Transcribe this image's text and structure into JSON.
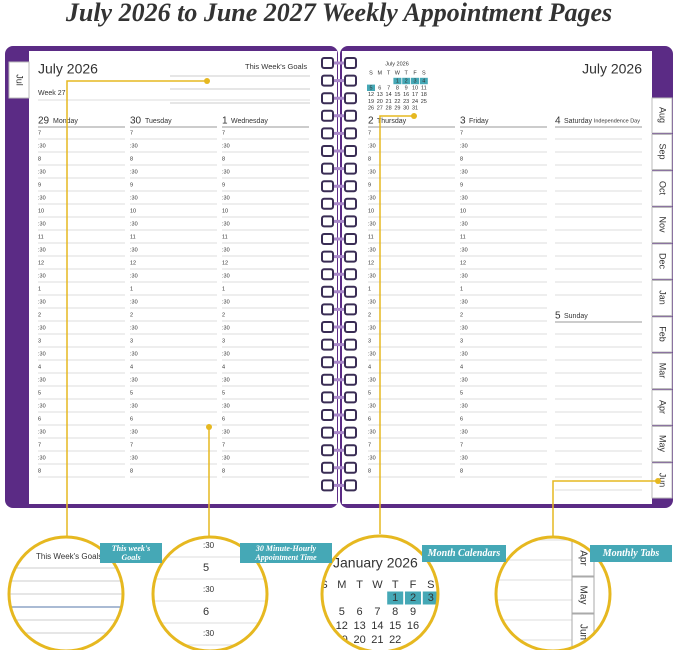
{
  "title": "July 2026 to June 2027 Weekly Appointment Pages",
  "left_page": {
    "tab": "Jul",
    "month": "July 2026",
    "goals_label": "This Week's Goals",
    "week": "Week 27",
    "days": [
      {
        "date": "29",
        "name": "Monday"
      },
      {
        "date": "30",
        "name": "Tuesday"
      },
      {
        "date": "1",
        "name": "Wednesday"
      }
    ]
  },
  "times": [
    "7",
    ":30",
    "8",
    ":30",
    "9",
    ":30",
    "10",
    ":30",
    "11",
    ":30",
    "12",
    ":30",
    "1",
    ":30",
    "2",
    ":30",
    "3",
    ":30",
    "4",
    ":30",
    "5",
    ":30",
    "6",
    ":30",
    "7",
    ":30",
    "8"
  ],
  "right_page": {
    "mini_calendar": {
      "month": "July 2026",
      "weekdays": [
        "S",
        "M",
        "T",
        "W",
        "T",
        "F",
        "S"
      ],
      "weeks": [
        [
          null,
          null,
          null,
          "1",
          "2",
          "3",
          "4"
        ],
        [
          "5",
          "6",
          "7",
          "8",
          "9",
          "10",
          "11"
        ],
        [
          "12",
          "13",
          "14",
          "15",
          "16",
          "17",
          "18"
        ],
        [
          "19",
          "20",
          "21",
          "22",
          "23",
          "24",
          "25"
        ],
        [
          "26",
          "27",
          "28",
          "29",
          "30",
          "31",
          null
        ]
      ]
    },
    "month": "July 2026",
    "days": [
      {
        "date": "2",
        "name": "Thursday"
      },
      {
        "date": "3",
        "name": "Friday"
      },
      {
        "date": "4",
        "name": "Saturday",
        "note": "Independence Day"
      },
      {
        "date": "5",
        "name": "Sunday"
      }
    ],
    "tabs": [
      "Aug",
      "Sep",
      "Oct",
      "Nov",
      "Dec",
      "Jan",
      "Feb",
      "Mar",
      "Apr",
      "May",
      "Jun"
    ]
  },
  "callouts": {
    "goals": {
      "banner": "This week's Goals",
      "zoom_label": "This Week's Goals"
    },
    "times": {
      "banner": "30 Minute-Hourly Appointment Time",
      "zoom_times": [
        ":30",
        "5",
        ":30",
        "6",
        ":30"
      ]
    },
    "calendar": {
      "banner": "Month Calendars",
      "zoom_month": "January 2026",
      "zoom_weekdays": [
        "S",
        "M",
        "T",
        "W",
        "T",
        "F",
        "S"
      ],
      "zoom_weeks": [
        [
          null,
          null,
          null,
          null,
          "1",
          "2",
          "3"
        ],
        [
          null,
          "5",
          "6",
          "7",
          "8",
          "9",
          null
        ],
        [
          null,
          "12",
          "13",
          "14",
          "15",
          "16",
          null
        ],
        [
          null,
          "19",
          "20",
          "21",
          "22",
          null,
          null
        ]
      ]
    },
    "tabs": {
      "banner": "Monthly Tabs",
      "zoom_tabs": [
        "Apr",
        "May",
        "Jun"
      ]
    }
  }
}
